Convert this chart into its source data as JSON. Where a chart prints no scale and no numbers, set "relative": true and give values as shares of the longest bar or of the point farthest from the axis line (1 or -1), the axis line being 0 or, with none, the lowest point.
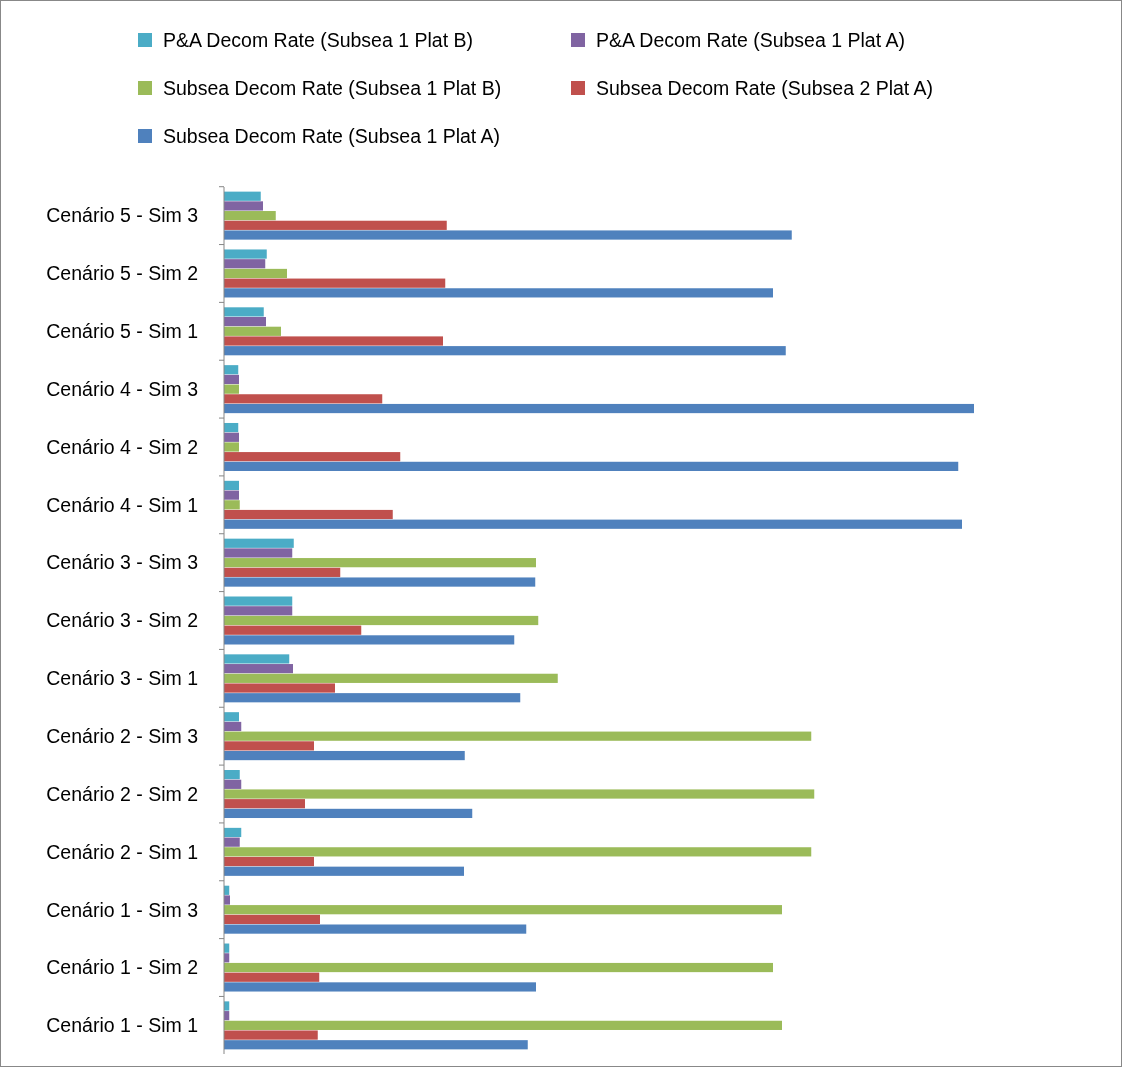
{
  "chart_data": {
    "type": "bar",
    "orientation": "horizontal",
    "relative": true,
    "legend": "top",
    "categories": [
      "Cenário 5 - Sim 3",
      "Cenário 5 - Sim 2",
      "Cenário 5 - Sim 1",
      "Cenário 4 - Sim 3",
      "Cenário 4 - Sim 2",
      "Cenário 4 - Sim 1",
      "Cenário 3 - Sim 3",
      "Cenário 3 - Sim 2",
      "Cenário 3 - Sim 1",
      "Cenário 2 - Sim 3",
      "Cenário 2 - Sim 2",
      "Cenário 2 - Sim 1",
      "Cenário 1 - Sim 3",
      "Cenário 1 - Sim 2",
      "Cenário 1 - Sim 1"
    ],
    "series": [
      {
        "name": "P&A Decom Rate (Subsea 1 Plat B)",
        "color": "#4bacc6",
        "values": [
          0.049,
          0.057,
          0.053,
          0.019,
          0.019,
          0.02,
          0.093,
          0.091,
          0.087,
          0.02,
          0.021,
          0.023,
          0.007,
          0.007,
          0.007
        ]
      },
      {
        "name": "P&A Decom Rate (Subsea 1 Plat A)",
        "color": "#8064a2",
        "values": [
          0.052,
          0.055,
          0.056,
          0.02,
          0.02,
          0.02,
          0.091,
          0.091,
          0.092,
          0.023,
          0.023,
          0.021,
          0.008,
          0.007,
          0.007
        ]
      },
      {
        "name": "Subsea Decom Rate (Subsea 1 Plat B)",
        "color": "#9bbb59",
        "values": [
          0.069,
          0.084,
          0.076,
          0.02,
          0.02,
          0.021,
          0.416,
          0.419,
          0.445,
          0.783,
          0.787,
          0.783,
          0.744,
          0.732,
          0.744
        ]
      },
      {
        "name": "Subsea Decom Rate (Subsea 2 Plat A)",
        "color": "#c0504d",
        "values": [
          0.297,
          0.295,
          0.292,
          0.211,
          0.235,
          0.225,
          0.155,
          0.183,
          0.148,
          0.12,
          0.108,
          0.12,
          0.128,
          0.127,
          0.125
        ]
      },
      {
        "name": "Subsea Decom Rate (Subsea 1 Plat A)",
        "color": "#4f81bd",
        "values": [
          0.757,
          0.732,
          0.749,
          1,
          0.979,
          0.984,
          0.415,
          0.387,
          0.395,
          0.321,
          0.331,
          0.32,
          0.403,
          0.416,
          0.405
        ]
      }
    ]
  }
}
